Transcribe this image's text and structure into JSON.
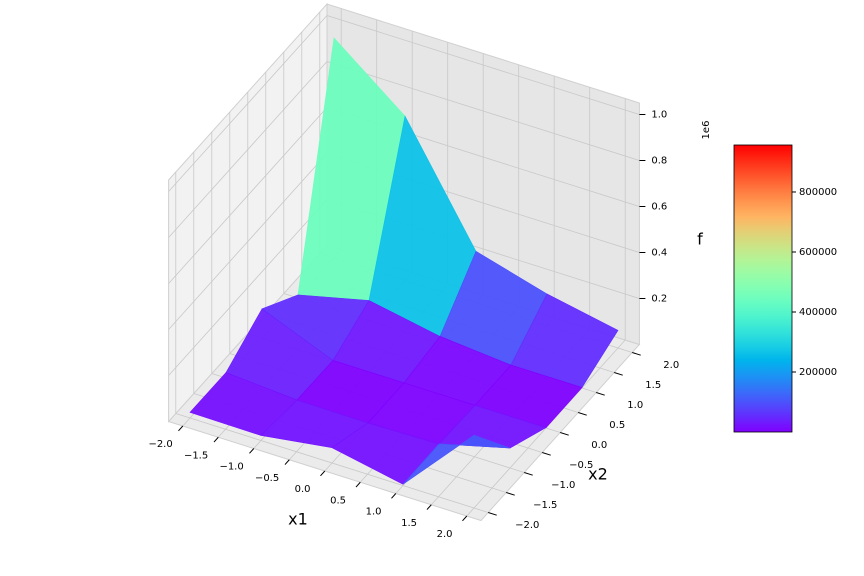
{
  "chart_data": {
    "type": "surface",
    "colormap": "rainbow",
    "xlabel": "x1",
    "ylabel": "x2",
    "zlabel": "f",
    "z_offset_label": "1e6",
    "x": [
      -2,
      -1,
      0,
      1,
      2
    ],
    "y": [
      -2,
      -1,
      0,
      1,
      2
    ],
    "z": [
      [
        24376,
        21886,
        66600,
        5278,
        316600
      ],
      [
        23651,
        2100,
        3,
        7100,
        86691
      ],
      [
        126600,
        278,
        600,
        726,
        1736
      ],
      [
        13603,
        87100,
        28611,
        1876,
        2275
      ],
      [
        956600,
        714846,
        224616,
        137150,
        76728
      ]
    ],
    "xlim": [
      -2.2,
      2.2
    ],
    "ylim": [
      -2.2,
      2.2
    ],
    "zlim": [
      0,
      1050000
    ],
    "xticks": [
      {
        "value": -2,
        "label": "−2.0"
      },
      {
        "value": -1.5,
        "label": "−1.5"
      },
      {
        "value": -1,
        "label": "−1.0"
      },
      {
        "value": -0.5,
        "label": "−0.5"
      },
      {
        "value": 0,
        "label": "0.0"
      },
      {
        "value": 0.5,
        "label": "0.5"
      },
      {
        "value": 1,
        "label": "1.0"
      },
      {
        "value": 1.5,
        "label": "1.5"
      },
      {
        "value": 2,
        "label": "2.0"
      }
    ],
    "yticks": [
      {
        "value": -2,
        "label": "−2.0"
      },
      {
        "value": -1.5,
        "label": "−1.5"
      },
      {
        "value": -1,
        "label": "−1.0"
      },
      {
        "value": -0.5,
        "label": "−0.5"
      },
      {
        "value": 0,
        "label": "0.0"
      },
      {
        "value": 0.5,
        "label": "0.5"
      },
      {
        "value": 1,
        "label": "1.0"
      },
      {
        "value": 1.5,
        "label": "1.5"
      },
      {
        "value": 2,
        "label": "2.0"
      }
    ],
    "zticks": [
      {
        "value": 200000,
        "label": "0.2"
      },
      {
        "value": 400000,
        "label": "0.4"
      },
      {
        "value": 600000,
        "label": "0.6"
      },
      {
        "value": 800000,
        "label": "0.8"
      },
      {
        "value": 1000000,
        "label": "1.0"
      }
    ],
    "colorbar_ticks": [
      200000,
      400000,
      600000,
      800000
    ],
    "grid": true
  }
}
